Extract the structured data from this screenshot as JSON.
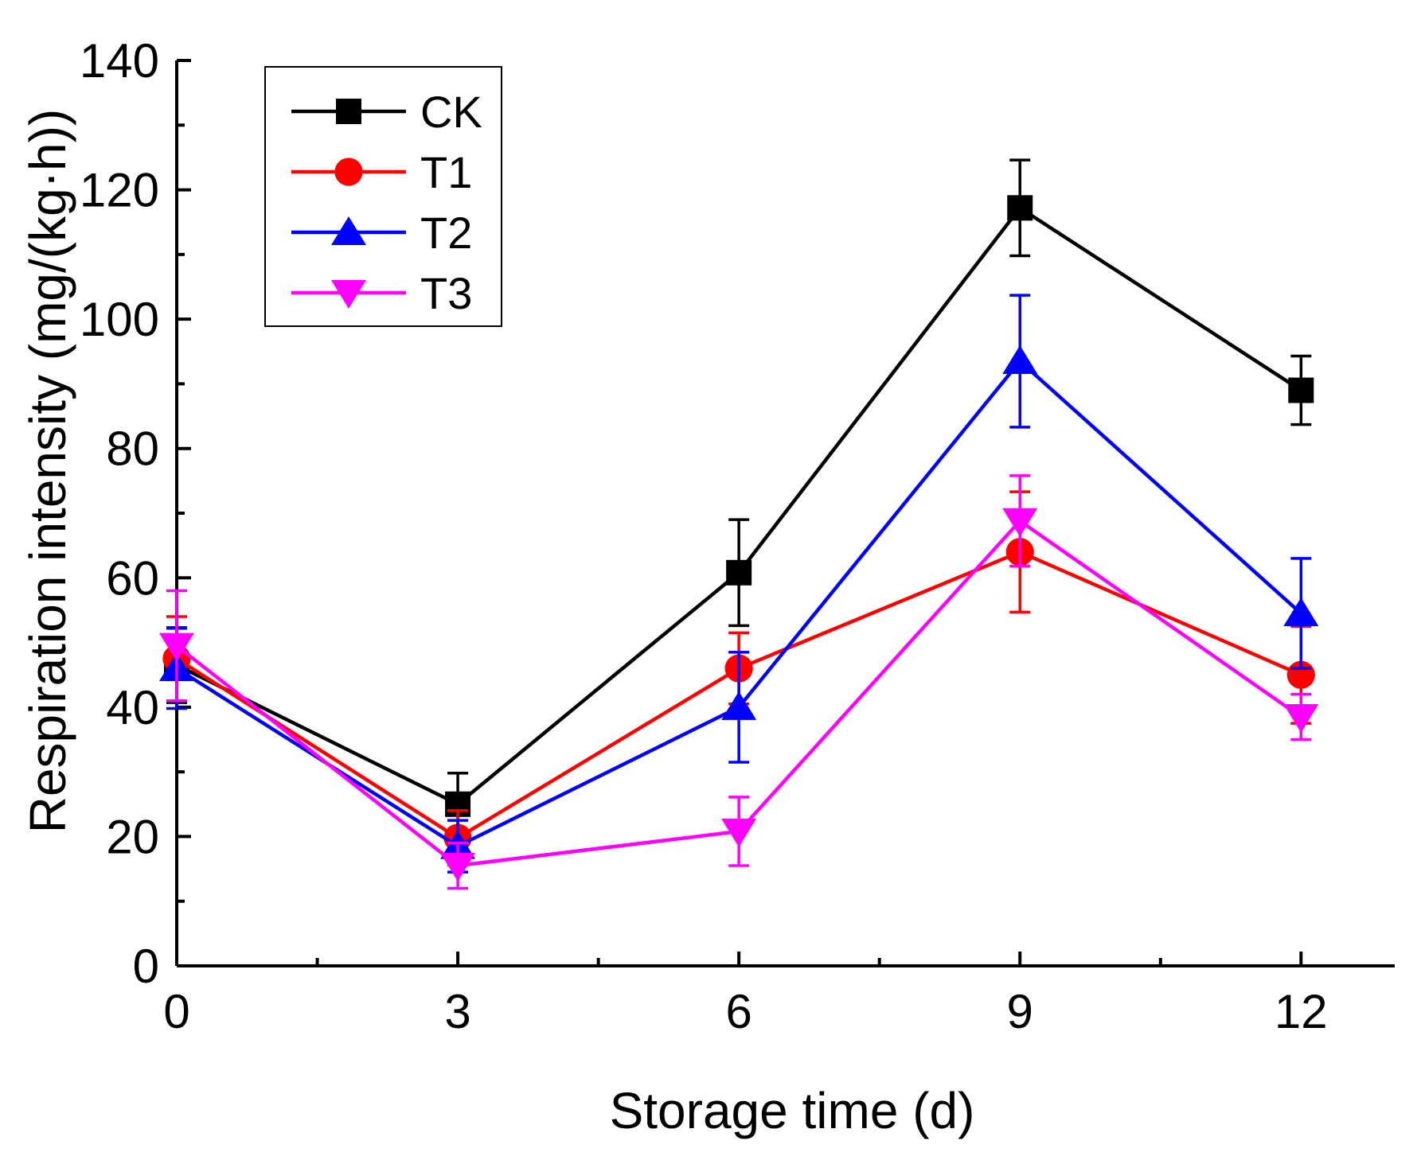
{
  "chart_data": {
    "type": "line",
    "xlabel": "Storage time (d)",
    "ylabel": "Respiration intensity (mg/(kg·h))",
    "x": [
      0,
      3,
      6,
      9,
      12
    ],
    "xlim": [
      0,
      13
    ],
    "ylim": [
      0,
      140
    ],
    "xticks": [
      0,
      3,
      6,
      9,
      12
    ],
    "xtick_labels": [
      "0",
      "3",
      "6",
      "9",
      "12"
    ],
    "yticks": [
      0,
      20,
      40,
      60,
      80,
      100,
      120,
      140
    ],
    "ytick_labels": [
      "0",
      "20",
      "40",
      "60",
      "80",
      "100",
      "120",
      "140"
    ],
    "grid": false,
    "legend_position": "top-left",
    "series": [
      {
        "name": "CK",
        "color": "#000000",
        "marker": "square",
        "values": [
          46.5,
          25.0,
          60.8,
          117.2,
          89.0
        ],
        "errors": [
          5.8,
          4.8,
          8.2,
          7.4,
          5.3
        ]
      },
      {
        "name": "T1",
        "color": "#ff0000",
        "marker": "circle",
        "values": [
          47.5,
          19.8,
          46.0,
          64.0,
          45.0
        ],
        "errors": [
          6.5,
          4.2,
          5.5,
          9.3,
          7.5
        ]
      },
      {
        "name": "T2",
        "color": "#0000ff",
        "marker": "triangle-up",
        "values": [
          46.0,
          18.5,
          40.0,
          93.5,
          54.5
        ],
        "errors": [
          6.2,
          4.0,
          8.5,
          10.2,
          8.5
        ]
      },
      {
        "name": "T3",
        "color": "#ff00ff",
        "marker": "triangle-down",
        "values": [
          49.5,
          15.5,
          20.8,
          68.8,
          38.5
        ],
        "errors": [
          8.5,
          3.5,
          5.3,
          7.0,
          3.5
        ]
      }
    ]
  }
}
